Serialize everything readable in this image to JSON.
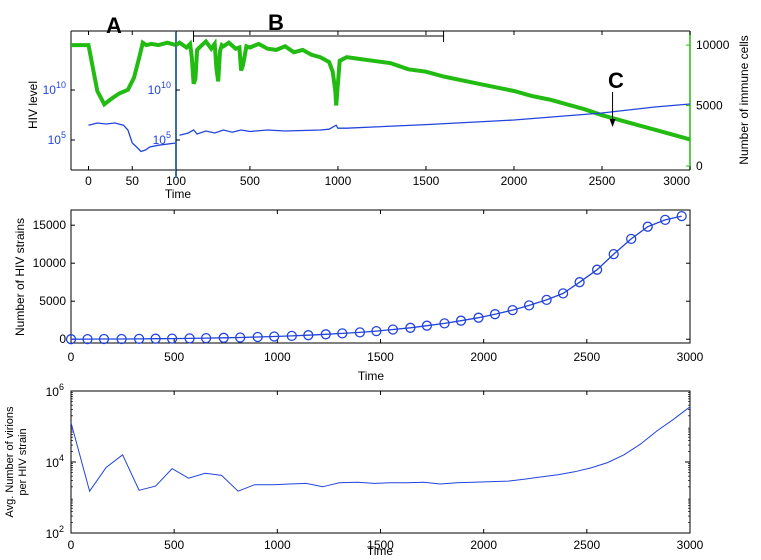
{
  "colors": {
    "blue": "#2244dd",
    "green": "#22bb11",
    "axis": "#000000",
    "divider": "#3a6fa0"
  },
  "chart_data": [
    {
      "id": "panel1",
      "type": "line",
      "dual_axis": true,
      "xlabel": "Time",
      "annotations": {
        "A": "A",
        "B": "B",
        "C": "C"
      },
      "left_axis": {
        "label": "HIV level",
        "scale": "log",
        "ticks": [
          {
            "value": 100000,
            "label": "10",
            "exp": "5"
          },
          {
            "value": 10000000000,
            "label": "10",
            "exp": "10"
          }
        ]
      },
      "right_axis": {
        "label": "Number of immune cells",
        "ylim": [
          0,
          11000
        ],
        "ticks": [
          "0",
          "5000",
          "10000"
        ],
        "tick_values": [
          0,
          5000,
          10000
        ]
      },
      "inset": {
        "xlim": [
          -20,
          100
        ],
        "xticks": [
          "0",
          "50",
          "100"
        ],
        "xtick_values": [
          0,
          50,
          100
        ],
        "green_x": [
          -20,
          0,
          10,
          18,
          25,
          35,
          45,
          52,
          58,
          62,
          66,
          72,
          80,
          90,
          100
        ],
        "green_y": [
          10000,
          10000,
          6200,
          5100,
          5500,
          6000,
          6300,
          7300,
          9000,
          10200,
          10000,
          10100,
          10000,
          10200,
          10000
        ],
        "blue_x": [
          0,
          10,
          20,
          30,
          40,
          45,
          50,
          55,
          60,
          65,
          70,
          80,
          100
        ],
        "blue_y": [
          3000000,
          5000000,
          4000000,
          5000000,
          3000000,
          1000000,
          50000,
          20000,
          7000,
          10000,
          20000,
          30000,
          50000
        ]
      },
      "main": {
        "xlim": [
          80,
          3000
        ],
        "xticks": [
          "500",
          "1000",
          "1500",
          "2000",
          "2500",
          "3000"
        ],
        "xtick_values": [
          500,
          1000,
          1500,
          2000,
          2500,
          3000
        ],
        "green_x": [
          80,
          100,
          140,
          160,
          170,
          180,
          190,
          200,
          220,
          250,
          280,
          300,
          310,
          320,
          330,
          340,
          350,
          380,
          420,
          440,
          450,
          460,
          480,
          500,
          550,
          600,
          650,
          700,
          750,
          800,
          850,
          900,
          950,
          970,
          985,
          990,
          1000,
          1010,
          1050,
          1100,
          1200,
          1300,
          1400,
          1500,
          1600,
          1700,
          1800,
          1900,
          2000,
          2100,
          2200,
          2300,
          2400,
          2500,
          2600,
          2700,
          2800,
          2900,
          3000
        ],
        "green_y": [
          10000,
          10200,
          9800,
          10100,
          9000,
          6800,
          7200,
          9600,
          9900,
          10300,
          9700,
          10100,
          8000,
          7000,
          9500,
          10000,
          9900,
          10200,
          9700,
          9800,
          7900,
          8300,
          9900,
          9800,
          10100,
          9700,
          9600,
          9900,
          9400,
          9600,
          9200,
          9000,
          8600,
          7800,
          6200,
          5000,
          6800,
          8700,
          9000,
          8900,
          8700,
          8500,
          8000,
          7800,
          7400,
          7100,
          6800,
          6500,
          6200,
          5800,
          5500,
          5100,
          4700,
          4200,
          3800,
          3400,
          3000,
          2600,
          2200
        ],
        "blue_x": [
          100,
          150,
          180,
          200,
          250,
          300,
          350,
          400,
          450,
          500,
          600,
          700,
          800,
          900,
          950,
          990,
          1000,
          1050,
          1200,
          1500,
          2000,
          2500,
          2800,
          3000
        ],
        "blue_y": [
          300000,
          500000,
          1000000,
          400000,
          800000,
          500000,
          1000000,
          600000,
          1000000,
          700000,
          1000000,
          800000,
          900000,
          1000000,
          1200000,
          3000000,
          1500000,
          1500000,
          2000000,
          3500000,
          10000000,
          50000000,
          200000000,
          400000000
        ],
        "c_arrow_x": 2560
      }
    },
    {
      "id": "panel2",
      "type": "line",
      "marker": "circle",
      "xlabel": "Time",
      "ylabel": [
        "Number of  HIV strains"
      ],
      "xlim": [
        0,
        3000
      ],
      "ylim": [
        -500,
        17000
      ],
      "xticks": [
        "0",
        "500",
        "1000",
        "1500",
        "2000",
        "2500",
        "3000"
      ],
      "xtick_values": [
        0,
        500,
        1000,
        1500,
        2000,
        2500,
        3000
      ],
      "yticks": [
        "0",
        "5000",
        "10000",
        "15000"
      ],
      "ytick_values": [
        0,
        5000,
        10000,
        15000
      ],
      "x": [
        0,
        80,
        160,
        245,
        330,
        410,
        490,
        575,
        655,
        740,
        820,
        905,
        985,
        1070,
        1150,
        1235,
        1315,
        1400,
        1480,
        1560,
        1645,
        1725,
        1810,
        1890,
        1975,
        2055,
        2140,
        2220,
        2305,
        2385,
        2465,
        2550,
        2630,
        2715,
        2795,
        2880,
        2960
      ],
      "y": [
        0,
        10,
        20,
        30,
        40,
        60,
        80,
        110,
        140,
        180,
        230,
        290,
        360,
        440,
        530,
        640,
        760,
        900,
        1070,
        1270,
        1500,
        1770,
        2080,
        2430,
        2830,
        3290,
        3830,
        4450,
        5170,
        6020,
        7500,
        9150,
        11200,
        13200,
        14800,
        15700,
        16200
      ]
    },
    {
      "id": "panel3",
      "type": "line",
      "xlabel": "Time",
      "ylabel": [
        "Avg. Number of virions",
        "per  HIV strain"
      ],
      "yscale": "log",
      "xlim": [
        0,
        3000
      ],
      "ylim": [
        100,
        1000000
      ],
      "xticks": [
        "0",
        "500",
        "1000",
        "1500",
        "2000",
        "2500",
        "3000"
      ],
      "xtick_values": [
        0,
        500,
        1000,
        1500,
        2000,
        2500,
        3000
      ],
      "yticks": [
        {
          "value": 100,
          "label": "10",
          "exp": "2"
        },
        {
          "value": 10000,
          "label": "10",
          "exp": "4"
        },
        {
          "value": 1000000,
          "label": "10",
          "exp": "6"
        }
      ],
      "x": [
        0,
        90,
        170,
        250,
        330,
        410,
        490,
        570,
        650,
        730,
        810,
        890,
        980,
        1060,
        1140,
        1220,
        1300,
        1390,
        1470,
        1550,
        1630,
        1710,
        1790,
        1870,
        1950,
        2040,
        2120,
        2200,
        2280,
        2360,
        2440,
        2520,
        2600,
        2680,
        2760,
        2840,
        2920,
        3000
      ],
      "y": [
        130000,
        1500,
        7000,
        16000,
        1600,
        2100,
        6500,
        3500,
        4800,
        4200,
        1500,
        2300,
        2300,
        2400,
        2500,
        2000,
        2600,
        2700,
        2500,
        2600,
        2600,
        2700,
        2400,
        2600,
        2700,
        2800,
        2900,
        3300,
        3800,
        4400,
        5300,
        6800,
        9600,
        16000,
        32000,
        75000,
        160000,
        360000
      ]
    }
  ]
}
